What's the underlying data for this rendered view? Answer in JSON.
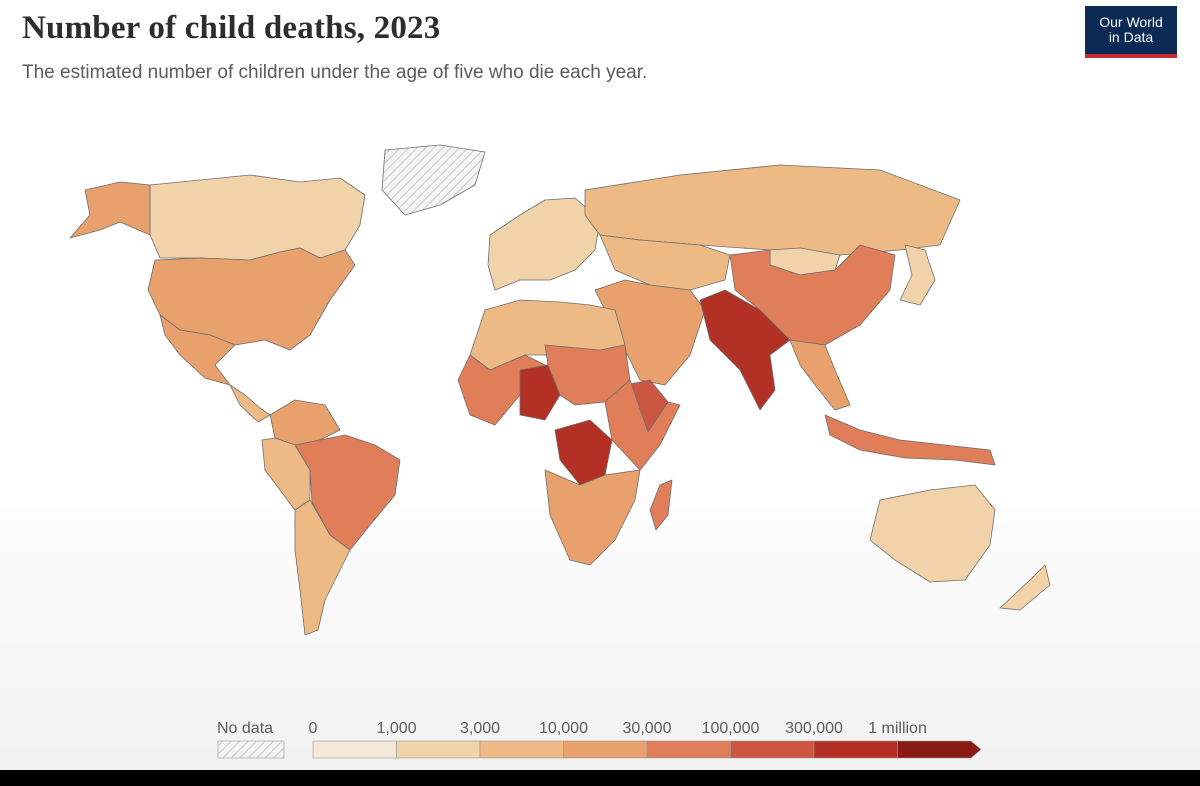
{
  "header": {
    "title": "Number of child deaths, 2023",
    "subtitle": "The estimated number of children under the age of five who die each year."
  },
  "logo": {
    "line1": "Our World",
    "line2": "in Data",
    "bg_color": "#0b2a55",
    "accent_color": "#c62b33"
  },
  "legend": {
    "no_data_label": "No data",
    "ticks": [
      "0",
      "1,000",
      "3,000",
      "10,000",
      "30,000",
      "100,000",
      "300,000",
      "1 million"
    ],
    "colors": [
      "#f6e8d6",
      "#f2d3a9",
      "#edba86",
      "#e8a06d",
      "#df7e58",
      "#cc5642",
      "#b33024",
      "#8a1a15"
    ]
  },
  "map": {
    "regions": [
      {
        "name": "Canada",
        "bin": 1
      },
      {
        "name": "United States",
        "bin": 3
      },
      {
        "name": "Alaska",
        "bin": 3
      },
      {
        "name": "Greenland",
        "bin": null
      },
      {
        "name": "Mexico",
        "bin": 3
      },
      {
        "name": "Central America",
        "bin": 2
      },
      {
        "name": "Colombia & Venezuela",
        "bin": 3
      },
      {
        "name": "Peru & Bolivia",
        "bin": 2
      },
      {
        "name": "Brazil",
        "bin": 4
      },
      {
        "name": "Argentina & Chile",
        "bin": 2
      },
      {
        "name": "Western Europe",
        "bin": 1
      },
      {
        "name": "Russia",
        "bin": 2
      },
      {
        "name": "Central Asia",
        "bin": 2
      },
      {
        "name": "Mongolia",
        "bin": 1
      },
      {
        "name": "China",
        "bin": 4
      },
      {
        "name": "Middle East",
        "bin": 3
      },
      {
        "name": "South Asia",
        "bin": 6
      },
      {
        "name": "Southeast Asia",
        "bin": 3
      },
      {
        "name": "Indonesia",
        "bin": 4
      },
      {
        "name": "Australia",
        "bin": 1
      },
      {
        "name": "New Zealand",
        "bin": 1
      },
      {
        "name": "North Africa",
        "bin": 2
      },
      {
        "name": "West Africa",
        "bin": 4
      },
      {
        "name": "Nigeria",
        "bin": 6
      },
      {
        "name": "Sudan & Chad",
        "bin": 4
      },
      {
        "name": "Ethiopia",
        "bin": 5
      },
      {
        "name": "DR Congo",
        "bin": 6
      },
      {
        "name": "East Africa",
        "bin": 4
      },
      {
        "name": "Southern Africa",
        "bin": 3
      },
      {
        "name": "Madagascar",
        "bin": 4
      },
      {
        "name": "Japan",
        "bin": 1
      }
    ]
  }
}
